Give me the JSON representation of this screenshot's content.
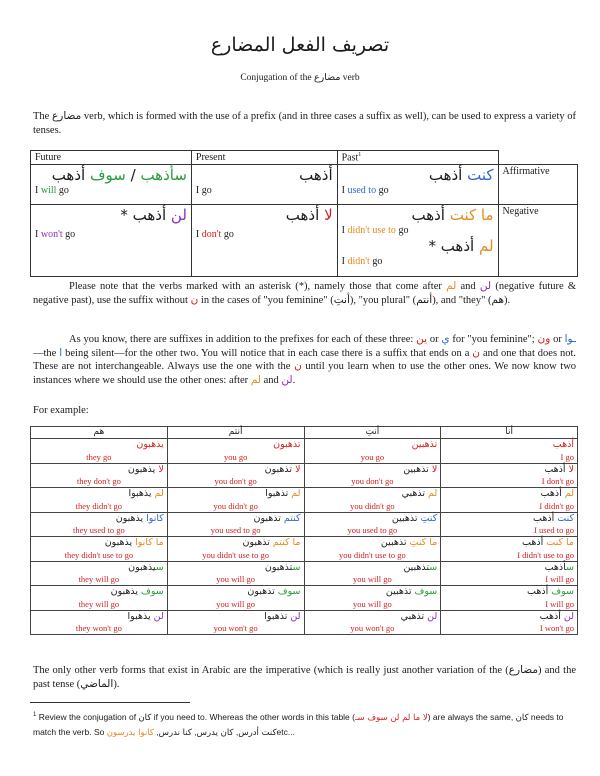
{
  "title": "تصريف الفعل المضارع",
  "subtitle_en": "Conjugation of the",
  "subtitle_ar": "مضارع",
  "subtitle_end": "verb",
  "intro": {
    "pre": "The",
    "ar": "مضارع",
    "post": "verb, which is formed with the use of a prefix (and in three cases a suffix as well), can be used to express a variety of tenses."
  },
  "table1": {
    "headers": {
      "future": "Future",
      "present": "Present",
      "past": "Past",
      "past_sup": "1"
    },
    "affirmative": {
      "label": "Affirmative",
      "future_ar_1": "سأذهب",
      "future_ar_sep": " / ",
      "future_ar_2a": "سوف",
      "future_ar_2b": " أذهب",
      "future_en_a": "I ",
      "future_en_b": "will",
      "future_en_c": " go",
      "present_ar": "أذهب",
      "present_en": "I go",
      "past_ar_a": "كنت",
      "past_ar_b": " أذهب",
      "past_en_a": "I ",
      "past_en_b": "used to",
      "past_en_c": " go"
    },
    "negative": {
      "label": "Negative",
      "future_ar_a": "لن",
      "future_ar_b": " أذهب *",
      "future_en_a": "I ",
      "future_en_b": "won't",
      "future_en_c": " go",
      "present_ar_a": "لا",
      "present_ar_b": " أذهب",
      "present_en_a": "I ",
      "present_en_b": "don't",
      "present_en_c": " go",
      "past_ar_1a": "ما كنت",
      "past_ar_1b": " أذهب",
      "past_en_1a": "I ",
      "past_en_1b": "didn't use to",
      "past_en_1c": " go",
      "past_ar_2a": "لم",
      "past_ar_2b": " أذهب *",
      "past_en_2a": "I ",
      "past_en_2b": "didn't",
      "past_en_2c": " go"
    }
  },
  "para2": {
    "a": "Please note that the verbs marked with an asterisk (*), namely those that come after",
    "lam": "لم",
    "b": "and",
    "lan": "لن",
    "c": "(negative future & negative past), use the suffix without",
    "nun": "ن",
    "d": "in the cases of \"you feminine\" (",
    "anti": "أنتِ",
    "e": "), \"you plural\" (",
    "antum": "أنتم",
    "f": "), and \"they\" (",
    "hum": "هم",
    "g": ")."
  },
  "para3": {
    "a": "As you know, there are suffixes in addition to the prefixes for each of these three:",
    "s1": "ين",
    "b": "or",
    "s2": "ي",
    "c": "for \"you feminine\";",
    "s3": "ون",
    "d": "or",
    "s4": "ـوا",
    "e": "—the",
    "alif": "ا",
    "f": "being silent—for the other two. You will notice that in each case there is a suffix that ends on a",
    "nun": "ن",
    "g": "and one that does not. These are not interchangeable. Always use the one with the",
    "nun2": "ن",
    "h": "until you learn when to use the other ones. We now know two instances where we should use the other ones: after",
    "lam": "لم",
    "i": "and",
    "lan": "لن",
    "j": "."
  },
  "example_label": "For example:",
  "table2": {
    "headers": [
      "هم",
      "أنتم",
      "أنتِ",
      "أنا"
    ],
    "rows": [
      {
        "cells": [
          {
            "ar_a": "",
            "ar_b": "يذهبون",
            "en": "they go"
          },
          {
            "ar_a": "",
            "ar_b": "تذهبون",
            "en": "you go"
          },
          {
            "ar_a": "",
            "ar_b": "تذهبين",
            "en": "you go"
          },
          {
            "ar_a": "",
            "ar_b": "أذهب",
            "en": "I go"
          }
        ]
      },
      {
        "cells": [
          {
            "ar_a": "لا",
            "ar_b": " يذهبون",
            "en": "they don't go"
          },
          {
            "ar_a": "لا",
            "ar_b": " تذهبون",
            "en": "you don't go"
          },
          {
            "ar_a": "لا",
            "ar_b": " تذهبين",
            "en": "you don't go"
          },
          {
            "ar_a": "لا",
            "ar_b": " أذهب",
            "en": "I don't go"
          }
        ]
      },
      {
        "cells": [
          {
            "ar_a": "لم",
            "ar_b": " يذهبوا",
            "en": "they didn't go"
          },
          {
            "ar_a": "لم",
            "ar_b": " تذهبوا",
            "en": "you didn't go"
          },
          {
            "ar_a": "لم",
            "ar_b": " تذهبي",
            "en": "you didn't go"
          },
          {
            "ar_a": "لم",
            "ar_b": " أذهب",
            "en": "I didn't go"
          }
        ]
      },
      {
        "cells": [
          {
            "ar_a": "كانوا",
            "ar_b": " يذهبون",
            "en": "they used to go"
          },
          {
            "ar_a": "كنتم",
            "ar_b": " تذهبون",
            "en": "you used to go"
          },
          {
            "ar_a": "كنتِ",
            "ar_b": " تذهبين",
            "en": "you used to go"
          },
          {
            "ar_a": "كنت",
            "ar_b": " أذهب",
            "en": "I used to go"
          }
        ]
      },
      {
        "cells": [
          {
            "ar_a": "ما كانوا",
            "ar_b": " يذهبون",
            "en": "they didn't use to go"
          },
          {
            "ar_a": "ما كنتم",
            "ar_b": " تذهبون",
            "en": "you didn't use to go"
          },
          {
            "ar_a": "ما كنتِ",
            "ar_b": " تذهبين",
            "en": "you didn't use to go"
          },
          {
            "ar_a": "ما كنت",
            "ar_b": " أذهب",
            "en": "I didn't use to go"
          }
        ]
      },
      {
        "cells": [
          {
            "ar_a": "س",
            "ar_b": "يذهبون",
            "en": "they will go"
          },
          {
            "ar_a": "س",
            "ar_b": "تذهبون",
            "en": "you will go"
          },
          {
            "ar_a": "س",
            "ar_b": "تذهبين",
            "en": "you will go"
          },
          {
            "ar_a": "س",
            "ar_b": "أذهب",
            "en": "I will go"
          }
        ]
      },
      {
        "cells": [
          {
            "ar_a": "سوف",
            "ar_b": " يذهبون",
            "en": "they will go"
          },
          {
            "ar_a": "سوف",
            "ar_b": " تذهبون",
            "en": "you will go"
          },
          {
            "ar_a": "سوف",
            "ar_b": " تذهبين",
            "en": "you will go"
          },
          {
            "ar_a": "سوف",
            "ar_b": " أذهب",
            "en": "I will go"
          }
        ]
      },
      {
        "cells": [
          {
            "ar_a": "لن",
            "ar_b": " يذهبوا",
            "en": "they won't go"
          },
          {
            "ar_a": "لن",
            "ar_b": " تذهبوا",
            "en": "you won't go"
          },
          {
            "ar_a": "لن",
            "ar_b": " تذهبي",
            "en": "you won't go"
          },
          {
            "ar_a": "لن",
            "ar_b": " أذهب",
            "en": "I won't go"
          }
        ]
      }
    ]
  },
  "para4": {
    "a": "The only other verb forms that exist in Arabic are the imperative (which is really just another variation of the",
    "ar1": "مضارع",
    "b": ") and the past tense (",
    "ar2": "الماضي",
    "c": ")."
  },
  "footnote": {
    "num": "1",
    "a": "Review the conjugation of",
    "kan": "كان",
    "b": "if you need to. Whereas the other words in this table (",
    "particles": "لا ما لم لن سوف سـ",
    "c": ") are always the same,",
    "kan2": "كان",
    "d": "needs to match the verb. So",
    "ex1": "كنت أدرس",
    "e": ",",
    "ex2": "كان يدرس",
    "f": ",",
    "ex3": "كنا ندرس",
    "g": ",",
    "ex4": "كانوا يدرسون",
    "h": "etc..."
  }
}
